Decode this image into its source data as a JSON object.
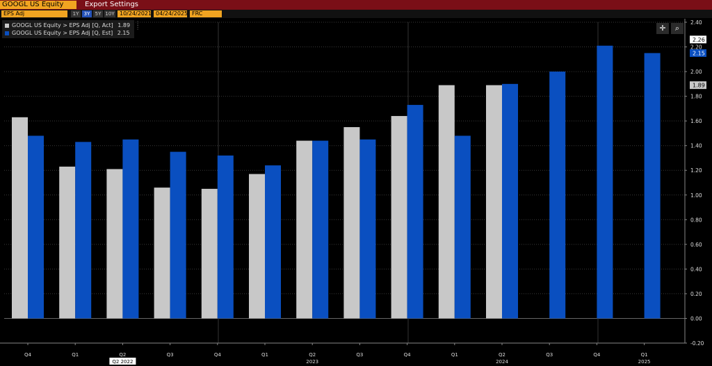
{
  "header": {
    "ticker": "GOOGL US Equity",
    "menu_export": "Export",
    "menu_settings": "Settings",
    "field_label": "EPS Adj",
    "periods": [
      "1Y",
      "3Y",
      "5Y",
      "10Y"
    ],
    "active_period": "3Y",
    "start_date": "10/24/2021",
    "end_date": "04/24/2025",
    "currency": "FRC (USD)"
  },
  "legend": {
    "items": [
      {
        "label": "GOOGL US Equity > EPS Adj [Q, Act]",
        "value": "1.89",
        "color": "#c8c8c8"
      },
      {
        "label": "GOOGL US Equity > EPS Adj [Q, Est]",
        "value": "2.15",
        "color": "#0a4fc0"
      }
    ]
  },
  "toolbar": {
    "crosshair_icon": "crosshair-icon",
    "zoom_icon": "magnify-icon"
  },
  "chart_data": {
    "type": "bar",
    "categories": [
      "Q4",
      "Q1",
      "Q2",
      "Q3",
      "Q4",
      "Q1",
      "Q2",
      "Q3",
      "Q4",
      "Q1",
      "Q2",
      "Q3",
      "Q4",
      "Q1"
    ],
    "year_labels": [
      {
        "index": 2,
        "label": "Q2 2022",
        "highlight": true
      },
      {
        "index": 6,
        "label": "2023"
      },
      {
        "index": 10,
        "label": "2024"
      },
      {
        "index": 13,
        "label": "2025"
      }
    ],
    "series": [
      {
        "name": "GOOGL US Equity > EPS Adj [Q, Act]",
        "color": "#c8c8c8",
        "values": [
          1.63,
          1.23,
          1.21,
          1.06,
          1.05,
          1.17,
          1.44,
          1.55,
          1.64,
          1.89,
          1.89,
          null,
          null,
          null
        ]
      },
      {
        "name": "GOOGL US Equity > EPS Adj [Q, Est]",
        "color": "#0a4fc0",
        "values": [
          1.48,
          1.43,
          1.45,
          1.35,
          1.32,
          1.24,
          1.44,
          1.45,
          1.73,
          1.48,
          1.9,
          2.0,
          2.21,
          2.15
        ]
      }
    ],
    "ylim": [
      -0.2,
      2.4
    ],
    "yticks": [
      "-0.20",
      "0.00",
      "0.20",
      "0.40",
      "0.60",
      "0.80",
      "1.00",
      "1.20",
      "1.40",
      "1.60",
      "1.80",
      "2.00",
      "2.20",
      "2.40"
    ],
    "badges": [
      {
        "value": 2.26,
        "label": "2.26",
        "bg": "#ffffff",
        "fg": "#000000"
      },
      {
        "value": 2.15,
        "label": "2.15",
        "bg": "#0a4fc0",
        "fg": "#ffffff"
      },
      {
        "value": 1.89,
        "label": "1.89",
        "bg": "#c8c8c8",
        "fg": "#000000"
      }
    ],
    "grid": true,
    "legend_position": "top-left"
  }
}
